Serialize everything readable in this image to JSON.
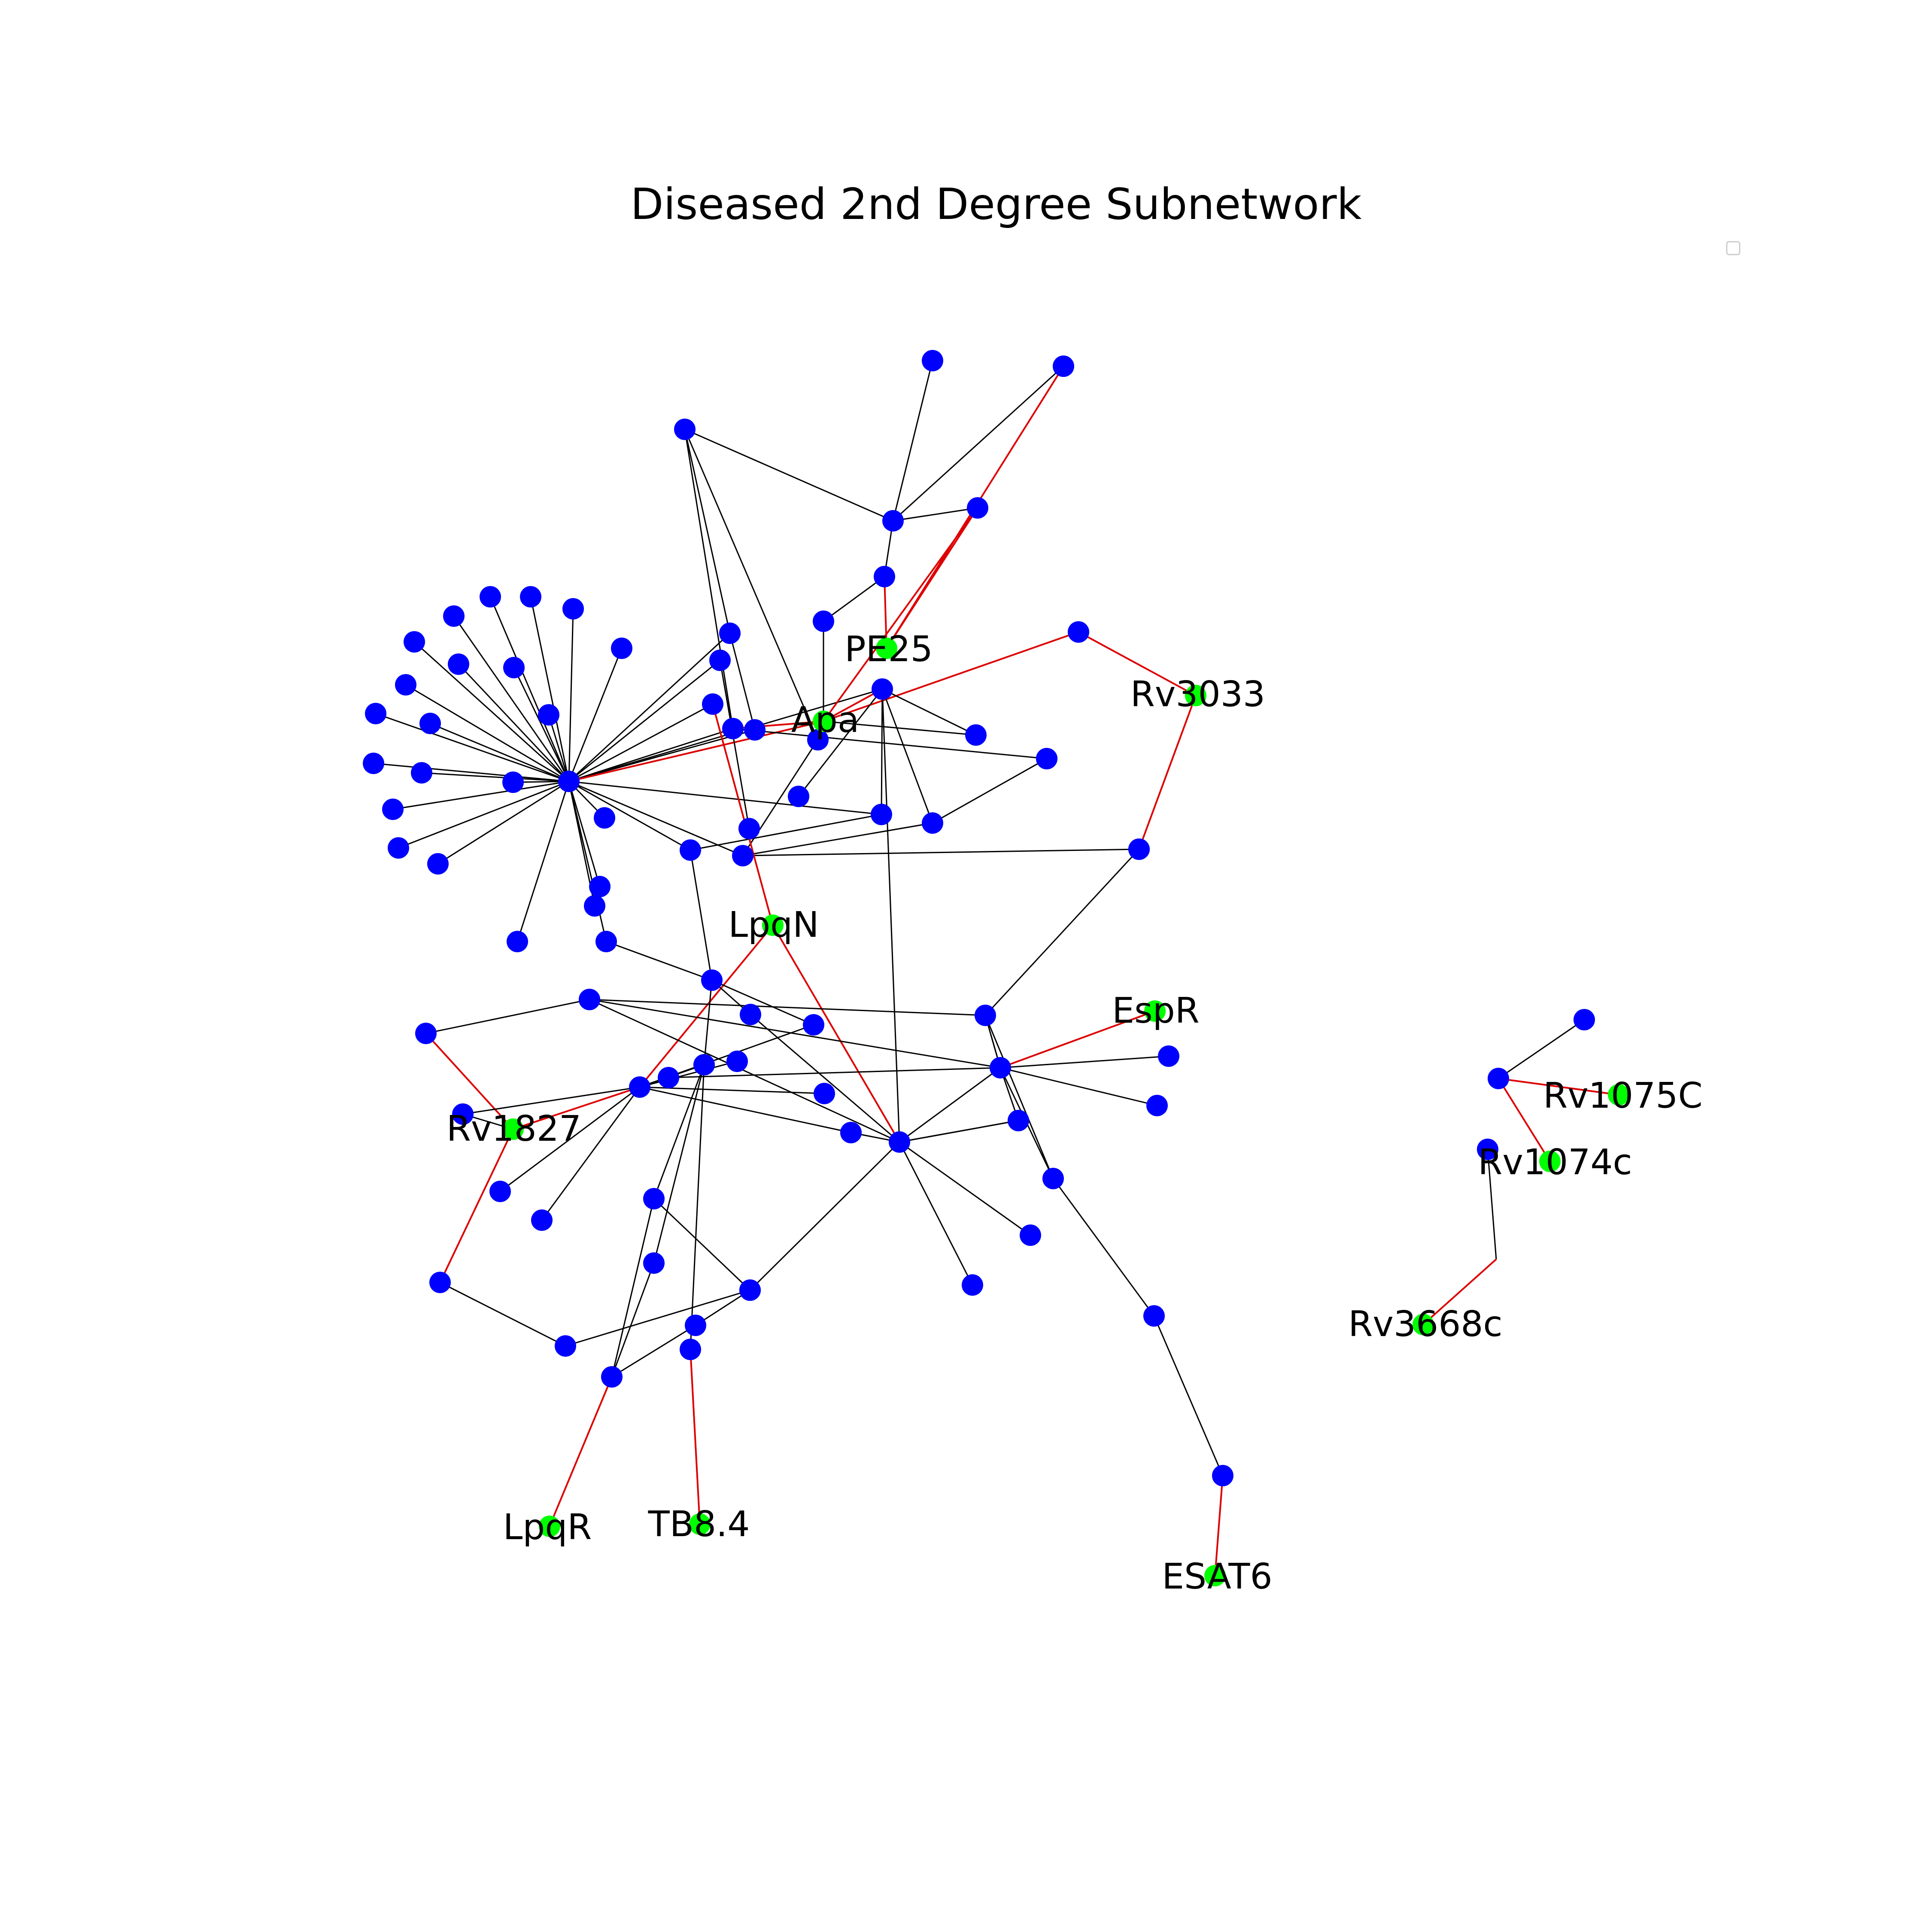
{
  "title": "Diseased 2nd Degree Subnetwork",
  "colors": {
    "background": "#ffffff",
    "node_default": "#0000ff",
    "node_highlight": "#00ff00",
    "edge_default": "#000000",
    "edge_highlight": "#dd0000"
  },
  "nodes": [
    {
      "id": "hub"
    },
    {
      "id": "PE25",
      "label": "PE25",
      "highlight": true
    },
    {
      "id": "Apa",
      "label": "Apa",
      "highlight": true
    },
    {
      "id": "Rv3033",
      "label": "Rv3033",
      "highlight": true
    },
    {
      "id": "LpqN",
      "label": "LpqN",
      "highlight": true
    },
    {
      "id": "EspR",
      "label": "EspR",
      "highlight": true
    },
    {
      "id": "Rv1827",
      "label": "Rv1827",
      "highlight": true
    },
    {
      "id": "LpqR",
      "label": "LpqR",
      "highlight": true
    },
    {
      "id": "TB8.4",
      "label": "TB8.4",
      "highlight": true
    },
    {
      "id": "ESAT6",
      "label": "ESAT6",
      "highlight": true
    },
    {
      "id": "Rv1075C",
      "label": "Rv1075C",
      "highlight": true
    },
    {
      "id": "Rv1074c",
      "label": "Rv1074c",
      "highlight": true
    },
    {
      "id": "Rv3668c",
      "label": "Rv3668c",
      "highlight": true
    },
    {
      "id": "n1"
    },
    {
      "id": "n2"
    },
    {
      "id": "n3"
    },
    {
      "id": "n4"
    },
    {
      "id": "n5"
    },
    {
      "id": "n6"
    },
    {
      "id": "n7"
    },
    {
      "id": "n8"
    },
    {
      "id": "n9"
    },
    {
      "id": "n10"
    },
    {
      "id": "n11"
    },
    {
      "id": "n12"
    },
    {
      "id": "n13"
    },
    {
      "id": "n14"
    },
    {
      "id": "n15"
    },
    {
      "id": "n16"
    },
    {
      "id": "n17"
    },
    {
      "id": "n18"
    },
    {
      "id": "n19"
    },
    {
      "id": "n20"
    },
    {
      "id": "n21"
    },
    {
      "id": "n22"
    },
    {
      "id": "n23"
    },
    {
      "id": "n24"
    },
    {
      "id": "n25"
    },
    {
      "id": "n26"
    },
    {
      "id": "n27"
    },
    {
      "id": "n28"
    },
    {
      "id": "n29"
    },
    {
      "id": "n30"
    },
    {
      "id": "n31"
    },
    {
      "id": "n32"
    },
    {
      "id": "n33"
    },
    {
      "id": "n34"
    },
    {
      "id": "n35"
    },
    {
      "id": "n36"
    },
    {
      "id": "n37"
    },
    {
      "id": "n38"
    },
    {
      "id": "n39"
    },
    {
      "id": "n40"
    },
    {
      "id": "n41"
    },
    {
      "id": "n42"
    },
    {
      "id": "n43"
    },
    {
      "id": "n44"
    },
    {
      "id": "n45"
    },
    {
      "id": "n46"
    },
    {
      "id": "n47"
    },
    {
      "id": "n48"
    },
    {
      "id": "n49"
    },
    {
      "id": "n50"
    },
    {
      "id": "n51"
    },
    {
      "id": "n52"
    },
    {
      "id": "n53"
    },
    {
      "id": "n54"
    },
    {
      "id": "n55"
    },
    {
      "id": "n56"
    },
    {
      "id": "n57"
    },
    {
      "id": "n58"
    },
    {
      "id": "n59"
    },
    {
      "id": "n60"
    },
    {
      "id": "n61"
    },
    {
      "id": "n62"
    },
    {
      "id": "n63"
    },
    {
      "id": "n64"
    },
    {
      "id": "n65"
    },
    {
      "id": "n66"
    },
    {
      "id": "n67"
    },
    {
      "id": "n68"
    },
    {
      "id": "n69"
    },
    {
      "id": "n70"
    },
    {
      "id": "n71"
    },
    {
      "id": "n72"
    },
    {
      "id": "n73"
    },
    {
      "id": "n74"
    },
    {
      "id": "n75"
    },
    {
      "id": "n76"
    },
    {
      "id": "n77"
    },
    {
      "id": "n78"
    },
    {
      "id": "n79"
    },
    {
      "id": "n80"
    },
    {
      "id": "n81"
    },
    {
      "id": "n82"
    },
    {
      "id": "n83"
    },
    {
      "id": "n84"
    },
    {
      "id": "n85"
    },
    {
      "id": "n86"
    },
    {
      "id": "n87"
    },
    {
      "id": "n88"
    }
  ],
  "edges": [
    [
      "hub",
      "n1"
    ],
    [
      "hub",
      "n2"
    ],
    [
      "hub",
      "n3"
    ],
    [
      "hub",
      "n4"
    ],
    [
      "hub",
      "n5"
    ],
    [
      "hub",
      "n6"
    ],
    [
      "hub",
      "n7"
    ],
    [
      "hub",
      "n8"
    ],
    [
      "hub",
      "n9"
    ],
    [
      "hub",
      "n10"
    ],
    [
      "hub",
      "n11"
    ],
    [
      "hub",
      "n12"
    ],
    [
      "hub",
      "n13"
    ],
    [
      "hub",
      "n14"
    ],
    [
      "hub",
      "n15"
    ],
    [
      "hub",
      "n16"
    ],
    [
      "hub",
      "n17"
    ],
    [
      "hub",
      "n18"
    ],
    [
      "hub",
      "n19"
    ],
    [
      "hub",
      "n21"
    ],
    [
      "hub",
      "n22"
    ],
    [
      "hub",
      "n25"
    ],
    [
      "hub",
      "n23"
    ],
    [
      "hub",
      "n24"
    ],
    [
      "hub",
      "n26"
    ],
    [
      "hub",
      "n30"
    ],
    [
      "hub",
      "n34"
    ],
    [
      "hub",
      "n36"
    ],
    [
      "hub",
      "n37"
    ],
    [
      "hub",
      "n42"
    ],
    [
      "hub",
      "n35"
    ],
    [
      "hub",
      "n40"
    ],
    [
      "hub",
      "Apa",
      "r"
    ],
    [
      "n20",
      "n21"
    ],
    [
      "n20",
      "n24"
    ],
    [
      "n20",
      "n39"
    ],
    [
      "n20",
      "n28"
    ],
    [
      "n21",
      "n25"
    ],
    [
      "n27",
      "n28"
    ],
    [
      "n28",
      "n29"
    ],
    [
      "n29",
      "PE25",
      "r"
    ],
    [
      "n28",
      "n31"
    ],
    [
      "n28",
      "n32"
    ],
    [
      "n31",
      "PE25",
      "r"
    ],
    [
      "n32",
      "Apa",
      "r"
    ],
    [
      "n33",
      "Apa"
    ],
    [
      "n33",
      "n31"
    ],
    [
      "n32",
      "PE25",
      "r"
    ],
    [
      "Apa",
      "n38",
      "r"
    ],
    [
      "Apa",
      "n24",
      "r"
    ],
    [
      "Apa",
      "n40",
      "r"
    ],
    [
      "Apa",
      "n43"
    ],
    [
      "n40",
      "n43"
    ],
    [
      "n40",
      "n44"
    ],
    [
      "n44",
      "n45"
    ],
    [
      "n41",
      "n40"
    ],
    [
      "n46",
      "n24"
    ],
    [
      "n42",
      "n40"
    ],
    [
      "n42",
      "n36"
    ],
    [
      "n37",
      "n47"
    ],
    [
      "n37",
      "n44"
    ],
    [
      "n37",
      "n39"
    ],
    [
      "n22",
      "n48"
    ],
    [
      "n38",
      "n49"
    ],
    [
      "n49",
      "Rv3033",
      "r"
    ],
    [
      "Rv3033",
      "n50",
      "r"
    ],
    [
      "n50",
      "n56"
    ],
    [
      "n56",
      "n58"
    ],
    [
      "n56",
      "n58"
    ],
    [
      "n58",
      "EspR",
      "r"
    ],
    [
      "n40",
      "n52"
    ],
    [
      "n23",
      "LpqN",
      "r"
    ],
    [
      "LpqN",
      "n52",
      "r"
    ],
    [
      "LpqN",
      "n57",
      "r"
    ],
    [
      "n36",
      "n53"
    ],
    [
      "n35",
      "n53"
    ],
    [
      "n53",
      "n54"
    ],
    [
      "n53",
      "n55"
    ],
    [
      "n53",
      "n63"
    ],
    [
      "n51",
      "n56"
    ],
    [
      "n51",
      "n52"
    ],
    [
      "n54",
      "n52"
    ],
    [
      "n55",
      "n57"
    ],
    [
      "n59",
      "n57"
    ],
    [
      "n60",
      "n61"
    ],
    [
      "n61",
      "n58"
    ],
    [
      "n60",
      "Rv1827",
      "r"
    ],
    [
      "n62",
      "Rv1827"
    ],
    [
      "Rv1827",
      "n57",
      "r"
    ],
    [
      "Rv1827",
      "n70",
      "r"
    ],
    [
      "n57",
      "n63"
    ],
    [
      "n57",
      "n67"
    ],
    [
      "n57",
      "n68"
    ],
    [
      "n57",
      "n64"
    ],
    [
      "n58",
      "n64"
    ],
    [
      "n58",
      "n65"
    ],
    [
      "n58",
      "n66"
    ],
    [
      "n58",
      "n52"
    ],
    [
      "n58",
      "n71"
    ],
    [
      "n58",
      "n72"
    ],
    [
      "n52",
      "n71"
    ],
    [
      "n52",
      "n73"
    ],
    [
      "n52",
      "n74"
    ],
    [
      "n52",
      "n75"
    ],
    [
      "n52",
      "n69"
    ],
    [
      "n63",
      "n76"
    ],
    [
      "n63",
      "n77"
    ],
    [
      "n76",
      "n78"
    ],
    [
      "n77",
      "n78"
    ],
    [
      "n70",
      "n79"
    ],
    [
      "n79",
      "n80"
    ],
    [
      "n80",
      "n76"
    ],
    [
      "n78",
      "LpqR",
      "r"
    ],
    [
      "n81",
      "TB8.4",
      "r"
    ],
    [
      "n63",
      "n81"
    ],
    [
      "n52",
      "n82"
    ],
    [
      "n82",
      "n83"
    ],
    [
      "n83",
      "n78"
    ],
    [
      "n56",
      "n72"
    ],
    [
      "n72",
      "n84"
    ],
    [
      "n84",
      "n85"
    ],
    [
      "n85",
      "ESAT6",
      "r"
    ],
    [
      "n86",
      "n87"
    ],
    [
      "n86",
      "Rv1075C",
      "r"
    ],
    [
      "n86",
      "Rv1074c",
      "r"
    ],
    [
      "n88",
      "n89"
    ],
    [
      "n89",
      "Rv3668c",
      "r"
    ]
  ]
}
